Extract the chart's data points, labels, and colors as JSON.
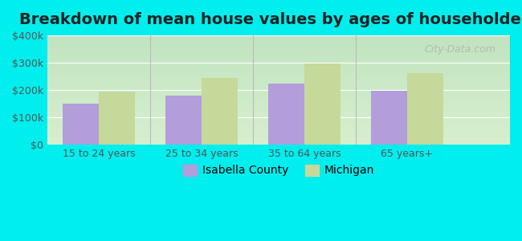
{
  "title": "Breakdown of mean house values by ages of householders",
  "categories": [
    "15 to 24 years",
    "25 to 34 years",
    "35 to 64 years",
    "65 years+"
  ],
  "isabella_county": [
    150000,
    180000,
    225000,
    197000
  ],
  "michigan": [
    195000,
    245000,
    298000,
    263000
  ],
  "color_isabella": "#b39ddb",
  "color_michigan": "#c5d99b",
  "ylim": [
    0,
    400000
  ],
  "yticks": [
    0,
    100000,
    200000,
    300000,
    400000
  ],
  "ytick_labels": [
    "$0",
    "$100k",
    "$200k",
    "$300k",
    "$400k"
  ],
  "legend_isabella": "Isabella County",
  "legend_michigan": "Michigan",
  "background_color": "#00eeee",
  "plot_bg_gradient_top": "#e8f5e9",
  "plot_bg_gradient_bottom": "#f0fdf0",
  "title_fontsize": 14,
  "tick_fontsize": 9,
  "legend_fontsize": 10,
  "bar_width": 0.35,
  "watermark": "City-Data.com"
}
